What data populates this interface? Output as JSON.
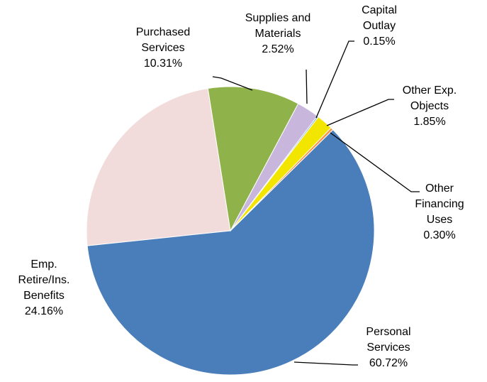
{
  "chart_data": {
    "type": "pie",
    "categories": [
      "Purchased Services",
      "Supplies and Materials",
      "Capital Outlay",
      "Other Exp. Objects",
      "Other Financing Uses",
      "Personal Services",
      "Emp. Retire/Ins. Benefits"
    ],
    "values": [
      10.31,
      2.52,
      0.15,
      1.85,
      0.3,
      60.72,
      24.16
    ],
    "value_labels": [
      "10.31%",
      "2.52%",
      "0.15%",
      "1.85%",
      "0.30%",
      "60.72%",
      "24.16%"
    ],
    "colors": [
      "#8fb24a",
      "#c9b6dd",
      "#5b9bd5",
      "#f2e600",
      "#f79646",
      "#4a7ebb",
      "#f2dcdb"
    ]
  }
}
